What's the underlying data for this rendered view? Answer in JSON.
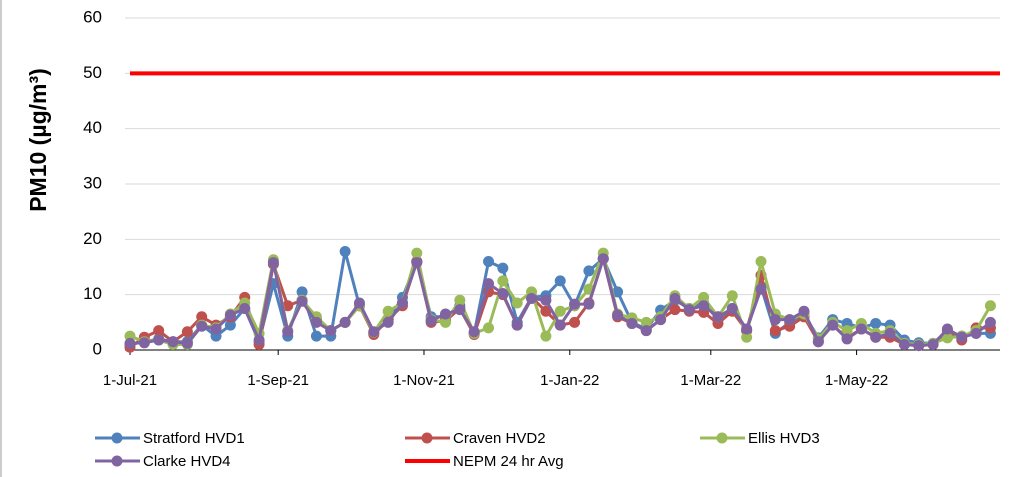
{
  "chart_data": {
    "type": "line",
    "y_label": "PM10 (µg/m³)",
    "ylim": [
      0,
      60
    ],
    "yticks": [
      0,
      10,
      20,
      30,
      40,
      50,
      60
    ],
    "grid": true,
    "xlim": [
      "2021-07-01",
      "2022-06-30"
    ],
    "xticks": [
      {
        "value": "2021-07-01",
        "label": "1-Jul-21"
      },
      {
        "value": "2021-09-01",
        "label": "1-Sep-21"
      },
      {
        "value": "2021-11-01",
        "label": "1-Nov-21"
      },
      {
        "value": "2022-01-01",
        "label": "1-Jan-22"
      },
      {
        "value": "2022-03-01",
        "label": "1-Mar-22"
      },
      {
        "value": "2022-05-01",
        "label": "1-May-22"
      }
    ],
    "legend": "bottom",
    "x": [
      "2021-07-01",
      "2021-07-07",
      "2021-07-13",
      "2021-07-19",
      "2021-07-25",
      "2021-07-31",
      "2021-08-06",
      "2021-08-12",
      "2021-08-18",
      "2021-08-24",
      "2021-08-30",
      "2021-09-05",
      "2021-09-11",
      "2021-09-17",
      "2021-09-23",
      "2021-09-29",
      "2021-10-05",
      "2021-10-11",
      "2021-10-17",
      "2021-10-23",
      "2021-10-29",
      "2021-11-04",
      "2021-11-10",
      "2021-11-16",
      "2021-11-22",
      "2021-11-28",
      "2021-12-04",
      "2021-12-10",
      "2021-12-16",
      "2021-12-22",
      "2021-12-28",
      "2022-01-03",
      "2022-01-09",
      "2022-01-15",
      "2022-01-21",
      "2022-01-27",
      "2022-02-02",
      "2022-02-08",
      "2022-02-14",
      "2022-02-20",
      "2022-02-26",
      "2022-03-04",
      "2022-03-10",
      "2022-03-16",
      "2022-03-22",
      "2022-03-28",
      "2022-04-03",
      "2022-04-09",
      "2022-04-15",
      "2022-04-21",
      "2022-04-27",
      "2022-05-03",
      "2022-05-09",
      "2022-05-15",
      "2022-05-21",
      "2022-05-27",
      "2022-06-02",
      "2022-06-08",
      "2022-06-14",
      "2022-06-20",
      "2022-06-26"
    ],
    "series": [
      {
        "name": "Stratford HVD1",
        "color": "#4f81bd",
        "values": [
          1,
          1.5,
          2,
          1.5,
          1.5,
          4.5,
          2.5,
          4.5,
          7.5,
          1.5,
          12,
          2.5,
          10.5,
          2.5,
          2.5,
          17.8,
          8,
          3,
          5.5,
          9.5,
          16,
          6,
          6,
          8,
          3,
          16,
          14.8,
          5,
          9.5,
          9.8,
          12.5,
          8,
          14.3,
          16.5,
          10.5,
          5,
          3.8,
          7.2,
          9,
          7.5,
          8.5,
          5.5,
          7.5,
          3.5,
          11.5,
          3,
          5,
          6.5,
          2.2,
          5.5,
          4.8,
          4,
          4.8,
          4.5,
          1.8,
          1.3,
          1.2,
          3.5,
          2.5,
          3,
          3
        ]
      },
      {
        "name": "Craven HVD2",
        "color": "#c0504d",
        "values": [
          0.5,
          2.3,
          3.5,
          1.5,
          3.3,
          6,
          4.5,
          6,
          9.5,
          1,
          15.5,
          8,
          9,
          5.5,
          3.5,
          5,
          8,
          2.8,
          5.5,
          8,
          16,
          5,
          5.3,
          7.5,
          2.8,
          10.5,
          10,
          4.5,
          9.5,
          7,
          4.5,
          5,
          8.5,
          16.5,
          6,
          4.8,
          3.5,
          5.5,
          7.3,
          7,
          6.8,
          4.8,
          7,
          3.5,
          13.5,
          3.5,
          4.3,
          6,
          1.5,
          4.5,
          2.2,
          3.8,
          2.3,
          2.3,
          1,
          0.8,
          1,
          3.5,
          1.8,
          4,
          4
        ]
      },
      {
        "name": "Ellis HVD3",
        "color": "#9bbb59",
        "values": [
          2.5,
          1.5,
          1.8,
          1,
          1,
          4.5,
          4,
          6.5,
          8.5,
          3,
          16.3,
          3.5,
          9,
          6,
          3.5,
          5,
          8,
          3.2,
          7,
          8.5,
          17.5,
          5.5,
          5,
          9,
          3,
          4,
          12.5,
          8.5,
          10.5,
          2.5,
          7,
          8,
          11,
          17.5,
          6.5,
          5.8,
          5,
          6,
          9.8,
          7.5,
          9.5,
          6,
          9.8,
          2.3,
          16,
          6.5,
          5.5,
          6.5,
          2,
          5,
          3.5,
          4.8,
          3,
          3.5,
          1.2,
          1,
          1.2,
          2.2,
          2.5,
          3.5,
          8
        ]
      },
      {
        "name": "Clarke HVD4",
        "color": "#8064a2",
        "values": [
          1.2,
          1.3,
          1.8,
          1.5,
          1.2,
          4.3,
          3.8,
          6.3,
          7.5,
          1.8,
          15.8,
          3.3,
          8.8,
          5,
          3.5,
          5,
          8.5,
          3.3,
          5,
          8.5,
          15.8,
          5.3,
          6.5,
          7.3,
          3.3,
          12,
          10.2,
          4.5,
          9.3,
          9,
          4.5,
          8.3,
          8.3,
          16.5,
          6.3,
          4.8,
          3.5,
          5.5,
          9.3,
          7.3,
          8,
          6,
          7.5,
          3.8,
          11,
          5.5,
          5.5,
          7,
          1.5,
          4.5,
          2,
          3.8,
          2.3,
          3,
          1,
          0.8,
          1,
          3.8,
          2.3,
          3,
          5
        ]
      }
    ],
    "reference_lines": [
      {
        "name": "NEPM 24 hr Avg",
        "color": "#ff0000",
        "value": 50
      }
    ]
  }
}
